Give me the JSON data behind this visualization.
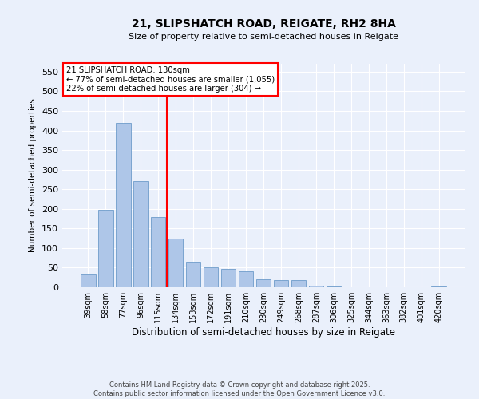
{
  "title_line1": "21, SLIPSHATCH ROAD, REIGATE, RH2 8HA",
  "title_line2": "Size of property relative to semi-detached houses in Reigate",
  "xlabel": "Distribution of semi-detached houses by size in Reigate",
  "ylabel": "Number of semi-detached properties",
  "categories": [
    "39sqm",
    "58sqm",
    "77sqm",
    "96sqm",
    "115sqm",
    "134sqm",
    "153sqm",
    "172sqm",
    "191sqm",
    "210sqm",
    "230sqm",
    "249sqm",
    "268sqm",
    "287sqm",
    "306sqm",
    "325sqm",
    "344sqm",
    "363sqm",
    "382sqm",
    "401sqm",
    "420sqm"
  ],
  "values": [
    35,
    198,
    420,
    270,
    180,
    125,
    65,
    50,
    47,
    40,
    20,
    18,
    18,
    5,
    2,
    1,
    1,
    0,
    0,
    0,
    2
  ],
  "bar_color": "#aec6e8",
  "bar_edge_color": "#5a8fc2",
  "vline_x_index": 5,
  "vline_color": "red",
  "annotation_title": "21 SLIPSHATCH ROAD: 130sqm",
  "annotation_line2": "← 77% of semi-detached houses are smaller (1,055)",
  "annotation_line3": "22% of semi-detached houses are larger (304) →",
  "annotation_box_color": "red",
  "annotation_box_facecolor": "white",
  "ylim": [
    0,
    570
  ],
  "yticks": [
    0,
    50,
    100,
    150,
    200,
    250,
    300,
    350,
    400,
    450,
    500,
    550
  ],
  "footer_line1": "Contains HM Land Registry data © Crown copyright and database right 2025.",
  "footer_line2": "Contains public sector information licensed under the Open Government Licence v3.0.",
  "bg_color": "#eaf0fb",
  "grid_color": "white"
}
